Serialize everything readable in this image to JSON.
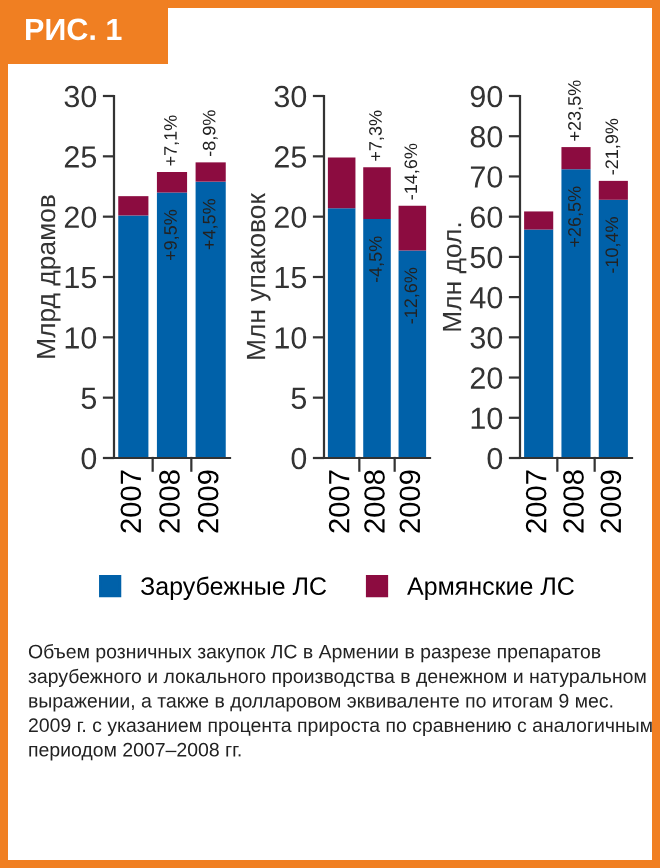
{
  "chart_data": [
    {
      "type": "bar",
      "title": "РИС. 1",
      "ylabel": "Млрд драмов",
      "categories": [
        "2007",
        "2008",
        "2009"
      ],
      "stacked": true,
      "legend": "bottom",
      "series": [
        {
          "name": "Зарубежные ЛС",
          "color": "#0061a9",
          "values": [
            20.1,
            22.0,
            22.9
          ]
        },
        {
          "name": "Армянские ЛС",
          "color": "#8c0c40",
          "values": [
            1.6,
            1.7,
            1.6
          ]
        }
      ],
      "ylim": [
        0,
        30
      ],
      "yticks": [
        0,
        5,
        10,
        15,
        20,
        25,
        30
      ],
      "annotations": [
        {
          "text": "+7,1%",
          "x": "2008",
          "y": 23.7
        },
        {
          "text": "-8,9%",
          "x": "2009",
          "y": 24.5
        },
        {
          "text": "+9,5%",
          "x": "2008",
          "y": 22.0
        },
        {
          "text": "+4,5%",
          "x": "2009",
          "y": 22.9
        },
        "Объем розничных закупок ЛС в Армении в разрезе препаратов зарубежного и локального производства в денежном и натуральном выражении, а также в долларовом эквиваленте по итогам 9 мес. 2009 г. с указанием процента прироста по сравнению с аналогичным периодом 2007–2008 гг."
      ]
    },
    {
      "type": "bar",
      "ylabel": "Млн упаковок",
      "categories": [
        "2007",
        "2008",
        "2009"
      ],
      "stacked": true,
      "series": [
        {
          "color": "#0061a9",
          "values": [
            20.7,
            19.8,
            17.2
          ]
        },
        {
          "color": "#8c0c40",
          "values": [
            4.2,
            4.3,
            3.7
          ]
        }
      ],
      "ylim": [
        0,
        30
      ],
      "yticks": [
        0,
        5,
        10,
        15,
        20,
        25,
        30
      ],
      "annotations": [
        {
          "text": "+7,3%",
          "x": "2008",
          "y": 24.1
        },
        {
          "text": "-14,6%",
          "x": "2009",
          "y": 20.9
        },
        {
          "text": "-4,5%",
          "x": "2008",
          "y": 19.8
        },
        {
          "text": "-12,6%",
          "x": "2009",
          "y": 17.2
        }
      ]
    },
    {
      "type": "bar",
      "ylabel": "Млн дол.",
      "categories": [
        "2007",
        "2008",
        "2009"
      ],
      "stacked": true,
      "series": [
        {
          "color": "#0061a9",
          "values": [
            56.8,
            71.8,
            64.2
          ]
        },
        {
          "color": "#8c0c40",
          "values": [
            4.5,
            5.5,
            4.7
          ]
        }
      ],
      "ylim": [
        0,
        90
      ],
      "yticks": [
        0,
        10,
        20,
        30,
        40,
        50,
        60,
        70,
        80,
        90
      ],
      "annotations": [
        {
          "text": "+23,5%",
          "x": "2008",
          "y": 77.3
        },
        {
          "text": "-21,9%",
          "x": "2009",
          "y": 68.9
        },
        {
          "text": "+26,5%",
          "x": "2008",
          "y": 71.8
        },
        {
          "text": "-10,4%",
          "x": "2009",
          "y": 64.2
        }
      ]
    }
  ]
}
